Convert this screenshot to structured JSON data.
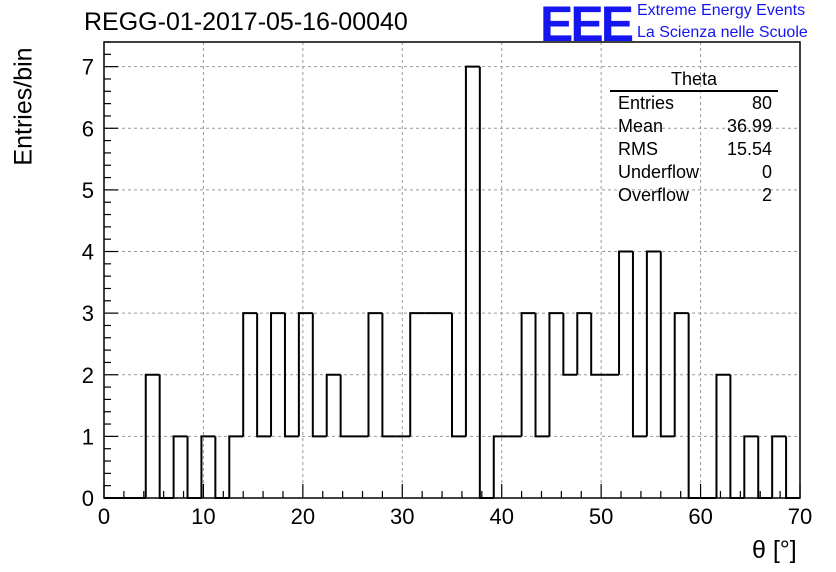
{
  "title": "REGG-01-2017-05-16-00040",
  "logo": {
    "mark": "EEE",
    "line1": "Extreme Energy Events",
    "line2": "La Scienza nelle Scuole"
  },
  "stats": {
    "name": "Theta",
    "rows": [
      {
        "label": "Entries",
        "value": "80"
      },
      {
        "label": "Mean",
        "value": "36.99"
      },
      {
        "label": "RMS",
        "value": "15.54"
      },
      {
        "label": "Underflow",
        "value": "0"
      },
      {
        "label": "Overflow",
        "value": "2"
      }
    ]
  },
  "chart_data": {
    "type": "histogram",
    "xlabel": "θ [°]",
    "ylabel": "Entries/bin",
    "xlim": [
      0,
      70
    ],
    "ylim": [
      0,
      7.4
    ],
    "xticks": [
      0,
      10,
      20,
      30,
      40,
      50,
      60,
      70
    ],
    "yticks": [
      0,
      1,
      2,
      3,
      4,
      5,
      6,
      7
    ],
    "grid": true,
    "bin_width": 1.4,
    "bin_start": 0,
    "values": [
      0,
      0,
      0,
      2,
      0,
      1,
      0,
      1,
      0,
      1,
      3,
      1,
      3,
      1,
      3,
      1,
      2,
      1,
      1,
      3,
      1,
      1,
      3,
      3,
      3,
      1,
      7,
      0,
      1,
      1,
      3,
      1,
      3,
      2,
      3,
      2,
      2,
      4,
      1,
      4,
      1,
      3,
      0,
      0,
      2,
      0,
      1,
      0,
      1,
      0
    ]
  }
}
